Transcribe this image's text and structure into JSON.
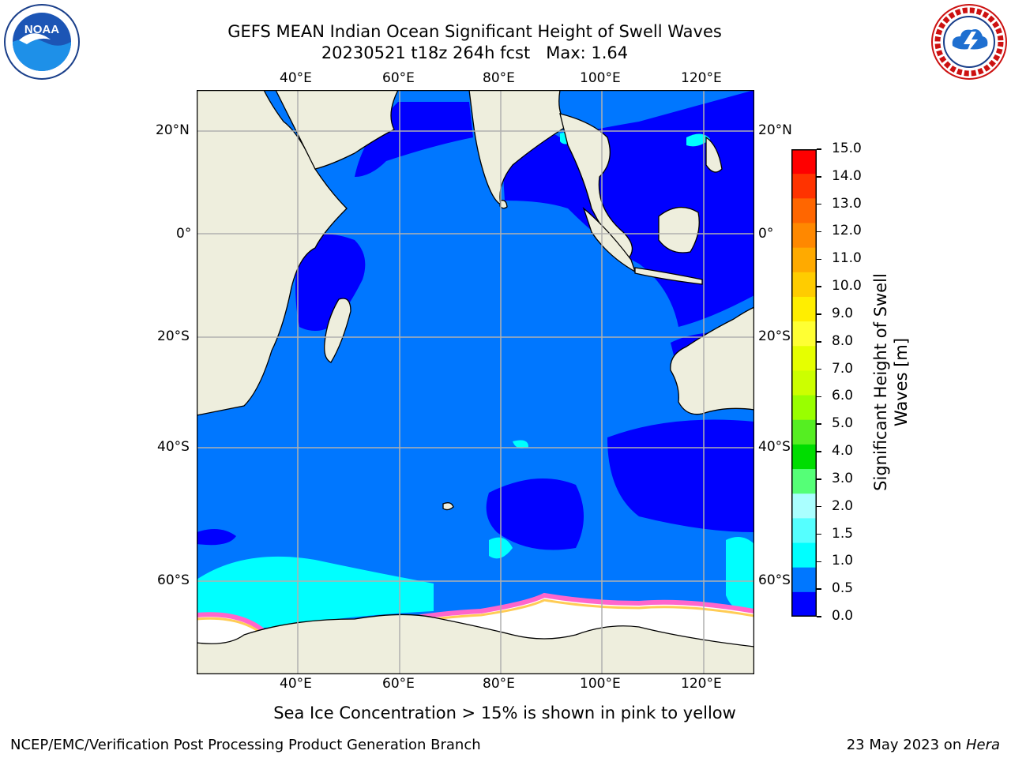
{
  "header": {
    "title_line1": "GEFS MEAN Indian Ocean Significant Height of Swell Waves",
    "title_line2": "20230521 t18z 264h fcst   Max: 1.64"
  },
  "logos": {
    "noaa_text": "NOAA",
    "nws_text": "NATIONAL WEATHER SERVICE"
  },
  "map": {
    "lon_labels": [
      "40°E",
      "60°E",
      "80°E",
      "100°E",
      "120°E"
    ],
    "lat_labels": [
      "20°N",
      "0°",
      "20°S",
      "40°S",
      "60°S"
    ],
    "colors": {
      "land": "#eeeedd",
      "ocean_low": "#0000ff",
      "ocean_mid": "#0077ff",
      "ocean_high": "#00ffff",
      "ice": "#ffffff",
      "ice_edge": "#ff66cc",
      "grid": "#b0b0b0"
    }
  },
  "colorbar": {
    "label": "Significant Height of Swell Waves [m]",
    "ticks": [
      "15.0",
      "14.0",
      "13.0",
      "12.0",
      "11.0",
      "10.0",
      "9.0",
      "8.0",
      "7.0",
      "6.0",
      "5.0",
      "4.0",
      "3.0",
      "2.0",
      "1.5",
      "1.0",
      "0.5",
      "0.0"
    ],
    "colors": [
      "#ff0000",
      "#ff3300",
      "#ff6600",
      "#ff8800",
      "#ffaa00",
      "#ffcc00",
      "#ffee00",
      "#ffff33",
      "#e6ff00",
      "#ccff00",
      "#99ff00",
      "#55ee22",
      "#00dd00",
      "#55ff77",
      "#aaffff",
      "#55ffff",
      "#00ffff",
      "#0077ff",
      "#0000ff"
    ]
  },
  "footer": {
    "note": "Sea Ice Concentration > 15% is shown in pink to yellow",
    "left": "NCEP/EMC/Verification Post Processing Product Generation Branch",
    "right_prefix": "23 May 2023 on ",
    "right_host": "Hera"
  }
}
